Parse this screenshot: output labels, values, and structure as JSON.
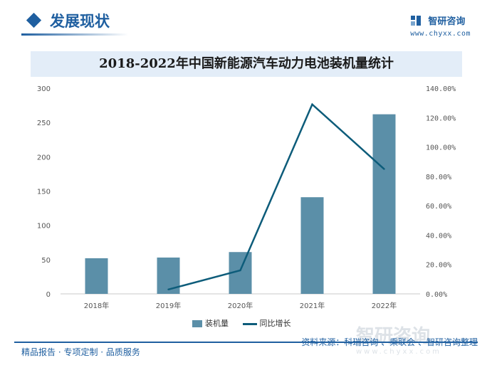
{
  "header": {
    "title": "发展现状",
    "brand_name": "智研咨询",
    "brand_url": "www.chyxx.com"
  },
  "colors": {
    "accent": "#1f5fa0",
    "bar": "#5b8fa8",
    "line": "#0d5c7a",
    "banner": "#e3edf8"
  },
  "legend": {
    "bar_label": "装机量",
    "line_label": "同比增长"
  },
  "footer": {
    "left_text": "精品报告 · 专项定制 · 品质服务",
    "source_text": "资料来源：科瑞咨询 、乘联会 、智研咨询整理",
    "watermark_text": "智研咨询",
    "watermark_url": "www.chyxx.com"
  },
  "chart_data": {
    "type": "bar",
    "title": "2018-2022年中国新能源汽车动力电池装机量统计",
    "categories": [
      "2018年",
      "2019年",
      "2020年",
      "2021年",
      "2022年"
    ],
    "series": [
      {
        "name": "装机量",
        "type": "bar",
        "axis": "left",
        "values": [
          52,
          53,
          61,
          141,
          262
        ]
      },
      {
        "name": "同比增长",
        "type": "line",
        "axis": "right",
        "values": [
          null,
          3.0,
          16.0,
          129.0,
          85.0
        ]
      }
    ],
    "y_left": {
      "min": 0,
      "max": 300,
      "ticks": [
        0,
        50,
        100,
        150,
        200,
        250,
        300
      ]
    },
    "y_right": {
      "min": 0,
      "max": 140,
      "ticks": [
        0,
        20,
        40,
        60,
        80,
        100,
        120,
        140
      ],
      "tick_labels": [
        "0.00%",
        "20.00%",
        "40.00%",
        "60.00%",
        "80.00%",
        "100.00%",
        "120.00%",
        "140.00%"
      ]
    },
    "grid": false,
    "legend_position": "bottom-center"
  }
}
